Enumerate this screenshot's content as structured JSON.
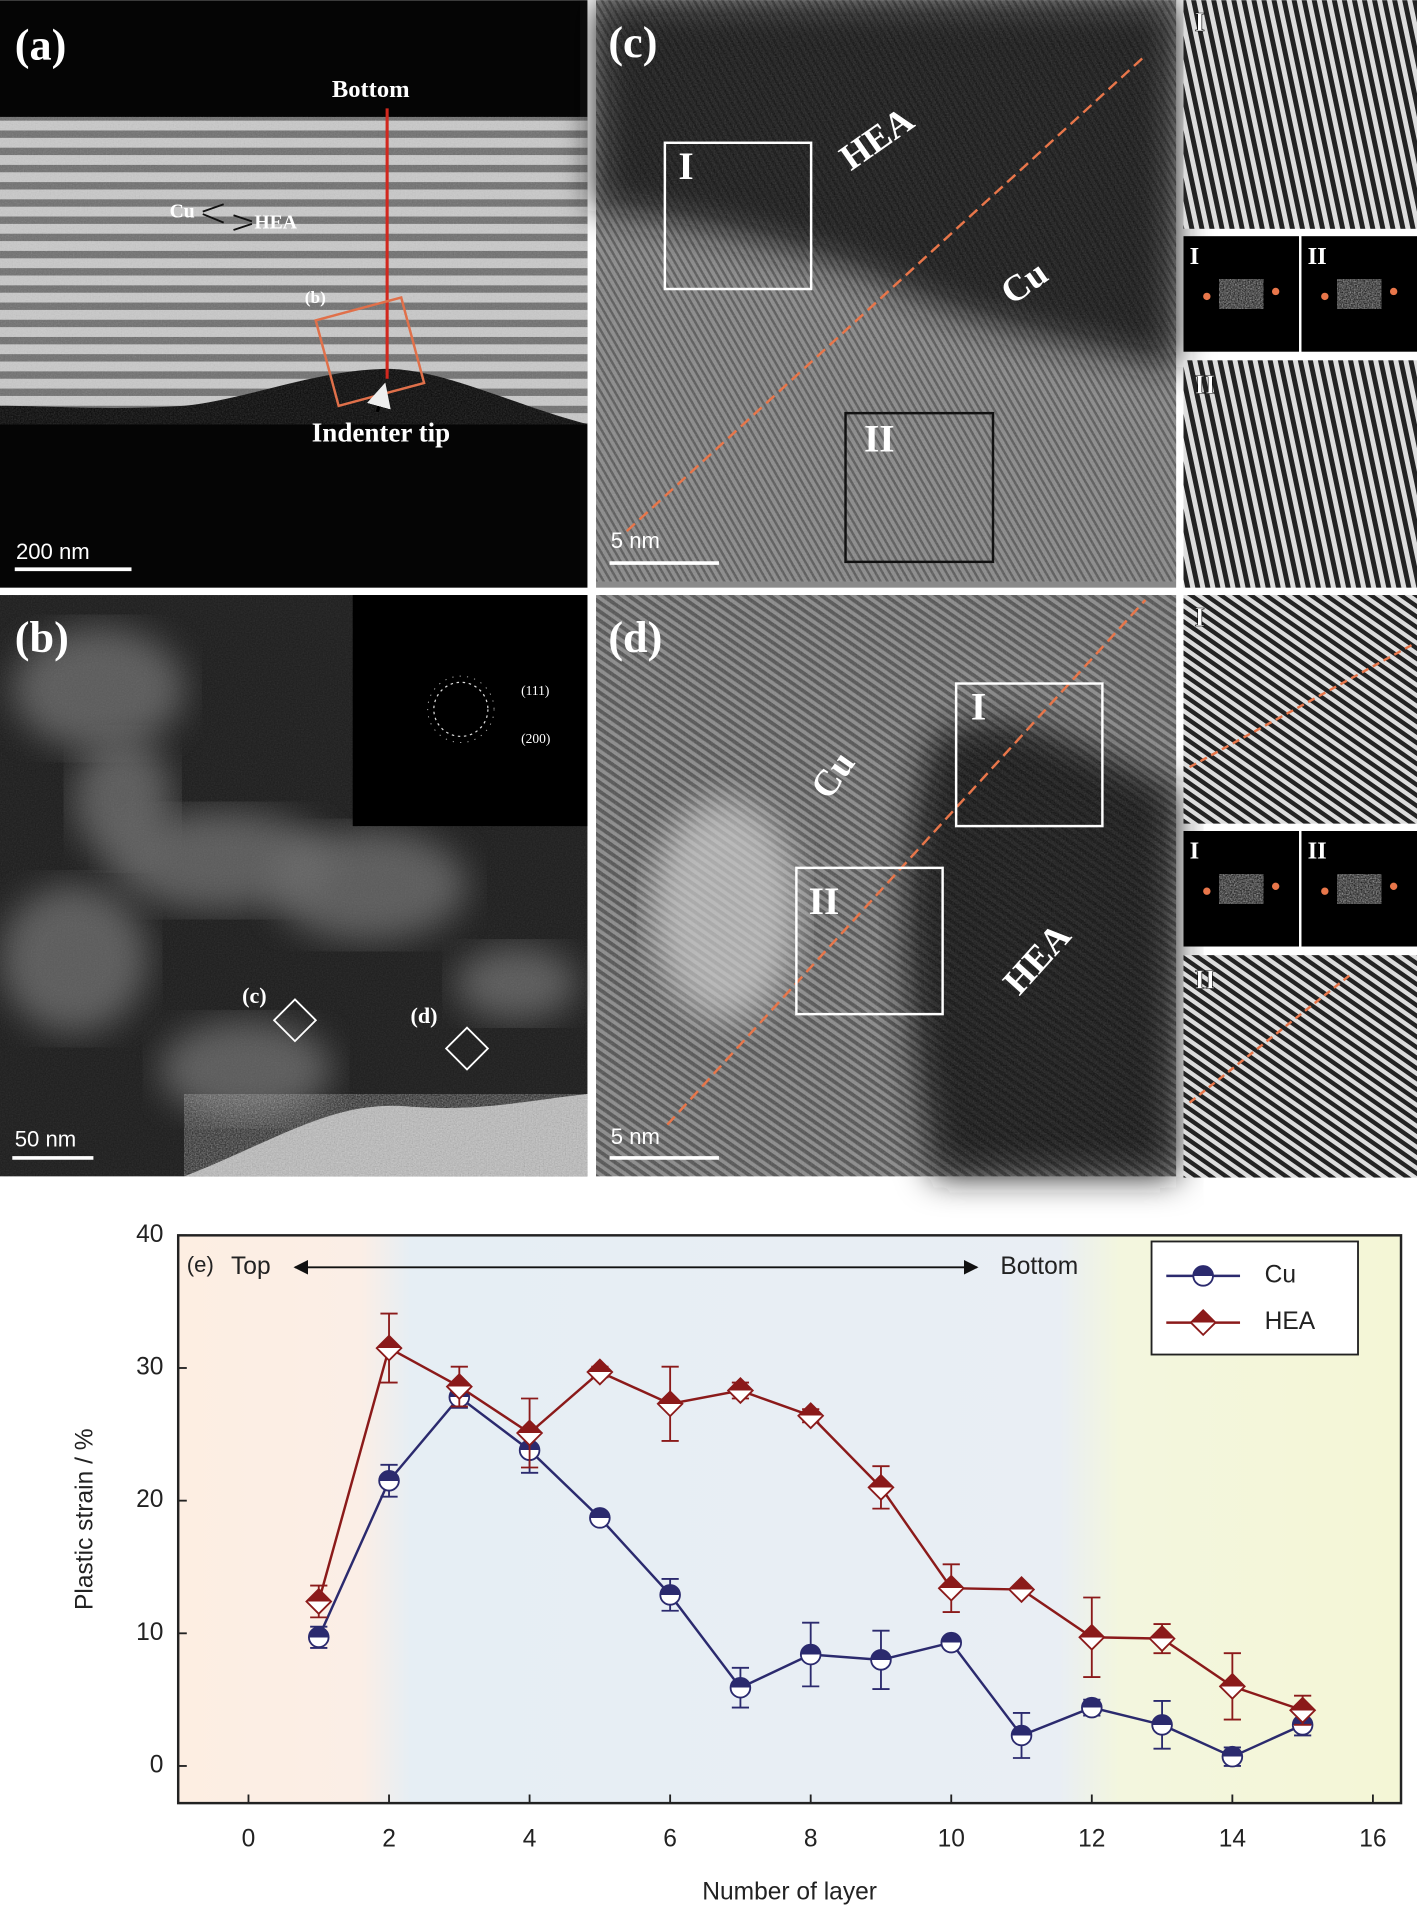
{
  "panels": {
    "a": {
      "label": "(a)",
      "bottom": "Bottom",
      "cu": "Cu",
      "hea": "HEA",
      "box": "(b)",
      "tip": "Indenter tip",
      "scale": "200 nm"
    },
    "b": {
      "label": "(b)",
      "ring1": "(111)",
      "ring2": "(200)",
      "box_c": "(c)",
      "box_d": "(d)",
      "scale": "50 nm"
    },
    "c": {
      "label": "(c)",
      "hea": "HEA",
      "cu": "Cu",
      "box1": "I",
      "box2": "II",
      "scale": "5 nm",
      "side": [
        "I",
        "I",
        "II",
        "II"
      ]
    },
    "d": {
      "label": "(d)",
      "cu": "Cu",
      "hea": "HEA",
      "box1": "I",
      "box2": "II",
      "scale": "5 nm",
      "side": [
        "I",
        "I",
        "II",
        "II"
      ]
    }
  },
  "chart_data": {
    "type": "line",
    "panel_label": "(e)",
    "left_note": "Top",
    "right_note": "Bottom",
    "x_label": "Number of layer",
    "y_label": "Plastic strain / %",
    "x": [
      1,
      2,
      3,
      4,
      5,
      6,
      7,
      8,
      9,
      10,
      11,
      12,
      13,
      14,
      15
    ],
    "series": [
      {
        "name": "Cu",
        "color": "#2b2a6e",
        "marker": "circle",
        "values": [
          9.7,
          21.5,
          27.8,
          23.8,
          18.7,
          12.9,
          5.9,
          8.4,
          8.0,
          9.3,
          2.3,
          4.4,
          3.1,
          0.7,
          3.1
        ],
        "errors": [
          0.8,
          1.2,
          0.8,
          1.7,
          0.3,
          1.2,
          1.5,
          2.4,
          2.2,
          0.4,
          1.7,
          0.6,
          1.8,
          0.7,
          0.8
        ]
      },
      {
        "name": "HEA",
        "color": "#8b1a1a",
        "marker": "diamond",
        "values": [
          12.4,
          31.5,
          28.6,
          25.1,
          29.7,
          27.3,
          28.3,
          26.4,
          21.0,
          13.4,
          13.3,
          9.7,
          9.6,
          6.0,
          4.2
        ],
        "errors": [
          1.2,
          2.6,
          1.5,
          2.6,
          0.4,
          2.8,
          0.6,
          0.5,
          1.6,
          1.8,
          0.3,
          3.0,
          1.1,
          2.5,
          1.1
        ]
      }
    ],
    "xlim": [
      -1,
      16.4
    ],
    "ylim": [
      -2.8,
      40
    ],
    "xticks": [
      0,
      2,
      4,
      6,
      8,
      10,
      12,
      14,
      16
    ],
    "yticks": [
      0,
      10,
      20,
      30,
      40
    ],
    "legend": "upper right"
  }
}
